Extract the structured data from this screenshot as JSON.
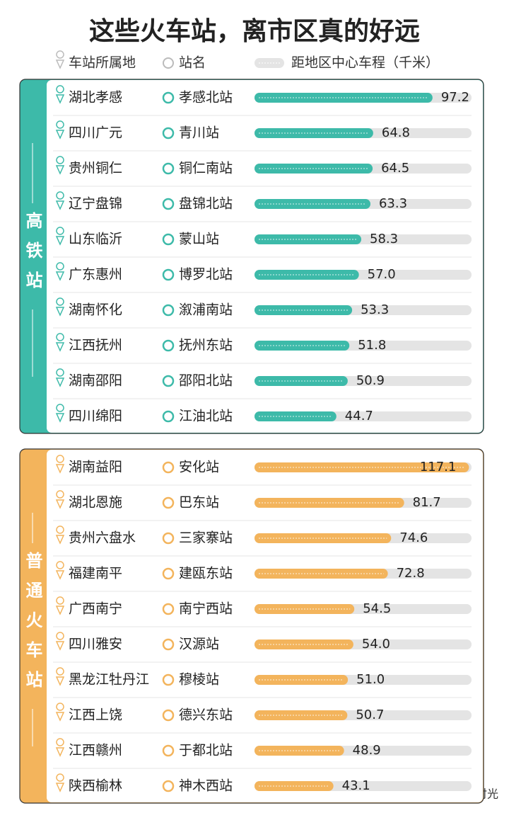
{
  "title": "这些火车站，离市区真的好远",
  "legend": {
    "place": "车站所属地",
    "station": "站名",
    "distance": "距地区中心车程（千米）"
  },
  "chart_data": [
    {
      "type": "bar",
      "section": "高铁站",
      "color": "#3dbaa9",
      "xlim": [
        0,
        118.5
      ],
      "provinces": [
        "湖北孝感",
        "四川广元",
        "贵州铜仁",
        "辽宁盘锦",
        "山东临沂",
        "广东惠州",
        "湖南怀化",
        "江西抚州",
        "湖南邵阳",
        "四川绵阳"
      ],
      "categories": [
        "孝感北站",
        "青川站",
        "铜仁南站",
        "盘锦北站",
        "蒙山站",
        "博罗北站",
        "溆浦南站",
        "抚州东站",
        "邵阳北站",
        "江油北站"
      ],
      "values": [
        97.2,
        64.8,
        64.5,
        63.3,
        58.3,
        57.0,
        53.3,
        51.8,
        50.9,
        44.7
      ],
      "value_labels": [
        "97.2",
        "64.8",
        "64.5",
        "63.3",
        "58.3",
        "57.0",
        "53.3",
        "51.8",
        "50.9",
        "44.7"
      ]
    },
    {
      "type": "bar",
      "section": "普通火车站",
      "color": "#f3b45c",
      "xlim": [
        0,
        118.5
      ],
      "provinces": [
        "湖南益阳",
        "湖北恩施",
        "贵州六盘水",
        "福建南平",
        "广西南宁",
        "四川雅安",
        "黑龙江牡丹江",
        "江西上饶",
        "江西赣州",
        "陕西榆林"
      ],
      "categories": [
        "安化站",
        "巴东站",
        "三家寨站",
        "建瓯东站",
        "南宁西站",
        "汉源站",
        "穆棱站",
        "德兴东站",
        "于都北站",
        "神木西站"
      ],
      "values": [
        117.1,
        81.7,
        74.6,
        72.8,
        54.5,
        54.0,
        51.0,
        50.7,
        48.9,
        43.1
      ],
      "value_labels": [
        "117.1",
        "81.7",
        "74.6",
        "72.8",
        "54.5",
        "54.0",
        "51.0",
        "50.7",
        "48.9",
        "43.1"
      ]
    }
  ],
  "watermark": "头条 @博度时光"
}
